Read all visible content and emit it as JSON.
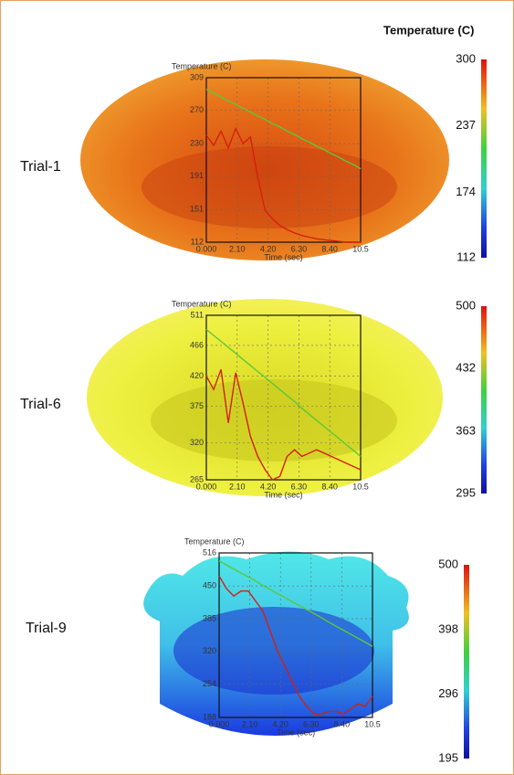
{
  "colorbar_title": "Temperature (C)",
  "chart_data": [
    {
      "type": "line",
      "title": "Trial-1",
      "y_label": "Temperature (C)",
      "x_label": "Time (sec)",
      "x": [
        0,
        0.5,
        1,
        1.5,
        2,
        2.5,
        3,
        3.5,
        4,
        4.5,
        5,
        5.5,
        6,
        6.5,
        7,
        7.5,
        8,
        8.5,
        9,
        9.5,
        10,
        10.5
      ],
      "series": [
        {
          "color": "#d42010",
          "values": [
            240,
            228,
            245,
            225,
            248,
            230,
            238,
            190,
            150,
            140,
            132,
            127,
            123,
            120,
            118,
            116,
            115,
            114,
            113,
            112,
            112,
            112
          ]
        },
        {
          "color": "#5cc83c",
          "values": [
            295,
            291,
            286,
            281,
            277,
            272,
            268,
            263,
            259,
            254,
            250,
            245,
            241,
            236,
            232,
            227,
            223,
            218,
            214,
            209,
            205,
            200
          ]
        }
      ],
      "xlim": [
        0,
        10.5
      ],
      "ylim": [
        112,
        309
      ],
      "xticks": [
        {
          "value": 0,
          "label": "0.000"
        },
        {
          "value": 2.1,
          "label": "2.10"
        },
        {
          "value": 4.2,
          "label": "4.20"
        },
        {
          "value": 6.3,
          "label": "6.30"
        },
        {
          "value": 8.4,
          "label": "8.40"
        },
        10.5
      ],
      "yticks": [
        112,
        151,
        191,
        230,
        270,
        309
      ],
      "grid": true,
      "colorbar": {
        "ticks": [
          300,
          237,
          174,
          112
        ]
      }
    },
    {
      "type": "line",
      "title": "Trial-6",
      "y_label": "Temperature (C)",
      "x_label": "Time (sec)",
      "x": [
        0,
        0.5,
        1,
        1.5,
        2,
        2.5,
        3,
        3.5,
        4,
        4.5,
        5,
        5.5,
        6,
        6.5,
        7,
        7.5,
        8,
        8.5,
        9,
        9.5,
        10,
        10.5
      ],
      "series": [
        {
          "color": "#d42010",
          "values": [
            420,
            400,
            430,
            350,
            425,
            380,
            330,
            300,
            280,
            265,
            270,
            300,
            310,
            300,
            305,
            310,
            305,
            300,
            295,
            290,
            285,
            280
          ]
        },
        {
          "color": "#5cc83c",
          "values": [
            490,
            481,
            472,
            463,
            454,
            445,
            436,
            427,
            418,
            409,
            400,
            391,
            382,
            372,
            363,
            354,
            345,
            336,
            327,
            318,
            309,
            300
          ]
        }
      ],
      "xlim": [
        0,
        10.5
      ],
      "ylim": [
        265,
        511
      ],
      "xticks": [
        {
          "value": 0,
          "label": "0.000"
        },
        {
          "value": 2.1,
          "label": "2.10"
        },
        {
          "value": 4.2,
          "label": "4.20"
        },
        {
          "value": 6.3,
          "label": "6.30"
        },
        {
          "value": 8.4,
          "label": "8.40"
        },
        10.5
      ],
      "yticks": [
        265,
        320,
        375,
        420,
        466,
        511
      ],
      "grid": true,
      "colorbar": {
        "ticks": [
          500,
          432,
          363,
          295
        ]
      }
    },
    {
      "type": "line",
      "title": "Trial-9",
      "y_label": "Temperature (C)",
      "x_label": "Time (sec)",
      "x": [
        0,
        0.5,
        1,
        1.5,
        2,
        2.5,
        3,
        3.5,
        4,
        4.5,
        5,
        5.5,
        6,
        6.5,
        7,
        7.5,
        8,
        8.5,
        9,
        9.5,
        10,
        10.5
      ],
      "series": [
        {
          "color": "#d42010",
          "values": [
            470,
            445,
            430,
            440,
            440,
            420,
            400,
            360,
            320,
            290,
            260,
            230,
            210,
            195,
            195,
            200,
            200,
            195,
            205,
            215,
            210,
            230
          ]
        },
        {
          "color": "#5cc83c",
          "values": [
            500,
            492,
            484,
            476,
            468,
            460,
            451,
            443,
            435,
            427,
            419,
            411,
            403,
            395,
            387,
            378,
            370,
            362,
            354,
            346,
            338,
            330
          ]
        }
      ],
      "xlim": [
        0,
        10.5
      ],
      "ylim": [
        188,
        516
      ],
      "xticks": [
        {
          "value": 0,
          "label": "0.000"
        },
        {
          "value": 2.1,
          "label": "2.10"
        },
        {
          "value": 4.2,
          "label": "4.20"
        },
        {
          "value": 6.3,
          "label": "6.30"
        },
        {
          "value": 8.4,
          "label": "8.40"
        },
        10.5
      ],
      "yticks": [
        188,
        254,
        320,
        385,
        450,
        516
      ],
      "grid": true,
      "colorbar": {
        "ticks": [
          500,
          398,
          296,
          195
        ]
      }
    }
  ]
}
